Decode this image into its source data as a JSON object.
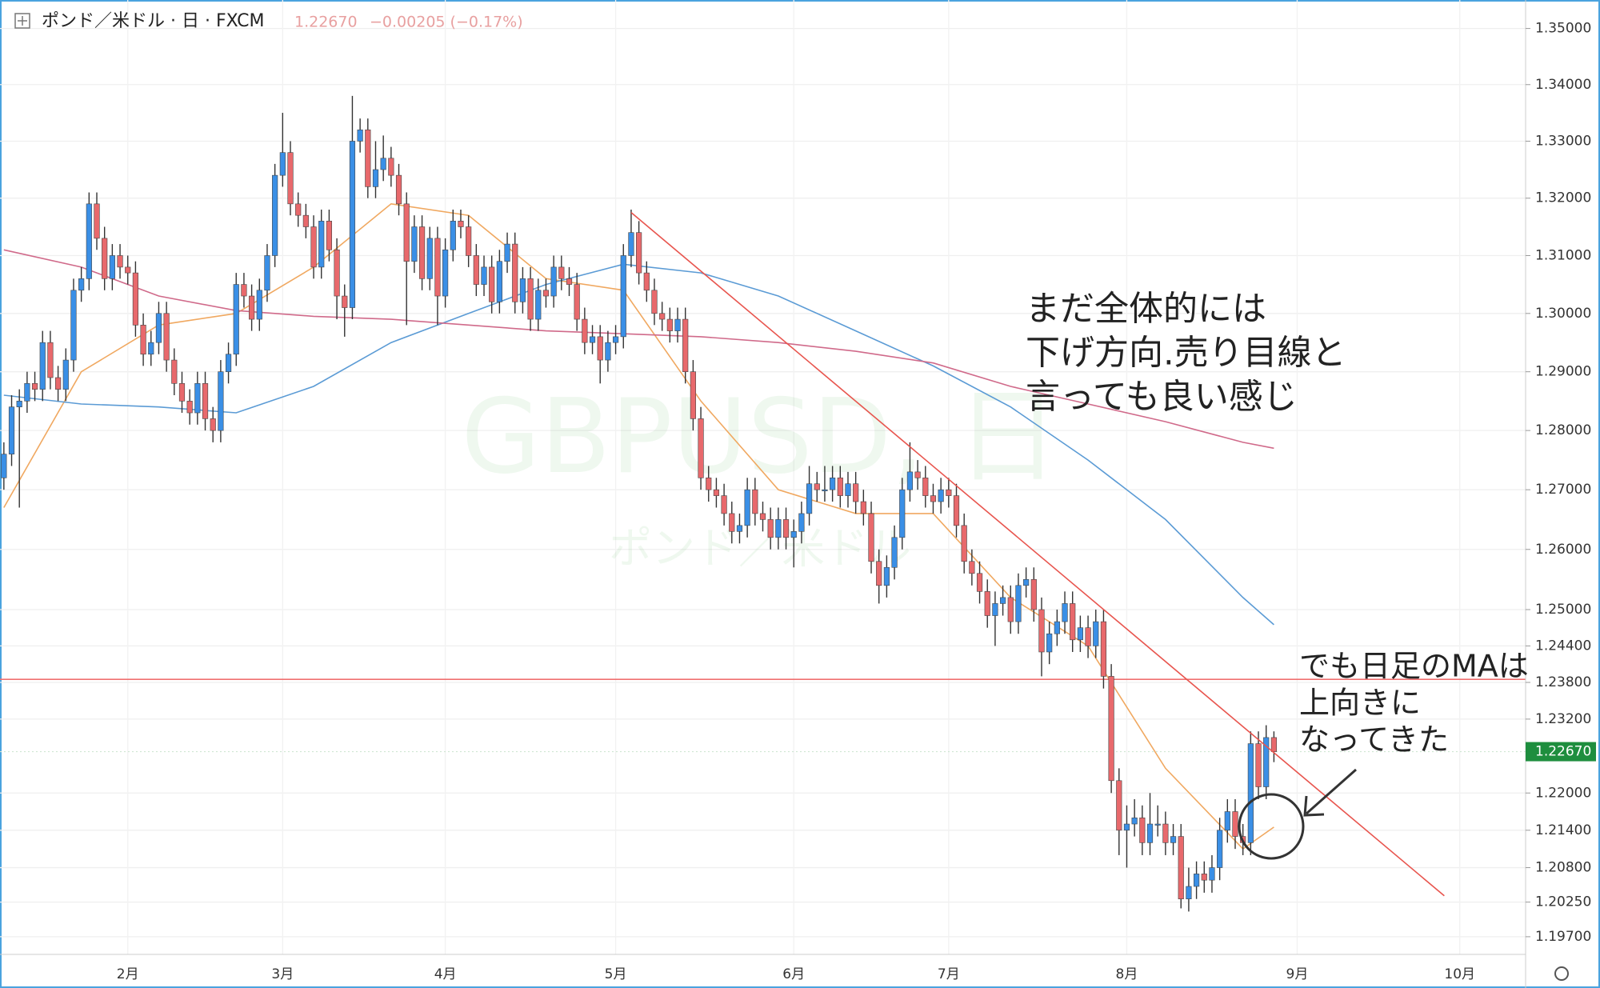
{
  "chart_data": {
    "type": "candlestick",
    "header": {
      "symbol": "ポンド／米ドル · 日 · FXCM",
      "last": "1.22670",
      "change": "−0.00205 (−0.17%)"
    },
    "watermark": {
      "title": "GBPUSD, 日",
      "subtitle": "ポンド／米ドル"
    },
    "log_scale": true,
    "grid": true,
    "up_color": "#3a8fe6",
    "down_color": "#e8696c",
    "ylim": [
      1.1942,
      1.3551
    ],
    "yticks": [
      {
        "value": 1.35,
        "label": "1.35000"
      },
      {
        "value": 1.34,
        "label": "1.34000"
      },
      {
        "value": 1.33,
        "label": "1.33000"
      },
      {
        "value": 1.32,
        "label": "1.32000"
      },
      {
        "value": 1.31,
        "label": "1.31000"
      },
      {
        "value": 1.3,
        "label": "1.30000"
      },
      {
        "value": 1.29,
        "label": "1.29000"
      },
      {
        "value": 1.28,
        "label": "1.28000"
      },
      {
        "value": 1.27,
        "label": "1.27000"
      },
      {
        "value": 1.26,
        "label": "1.26000"
      },
      {
        "value": 1.25,
        "label": "1.25000"
      },
      {
        "value": 1.244,
        "label": "1.24400"
      },
      {
        "value": 1.238,
        "label": "1.23800"
      },
      {
        "value": 1.232,
        "label": "1.23200"
      },
      {
        "value": 1.22,
        "label": "1.22000"
      },
      {
        "value": 1.214,
        "label": "1.21400"
      },
      {
        "value": 1.208,
        "label": "1.20800"
      },
      {
        "value": 1.2025,
        "label": "1.20250"
      },
      {
        "value": 1.197,
        "label": "1.19700"
      }
    ],
    "categories": [
      null,
      null,
      null,
      null,
      null,
      null,
      null,
      null,
      null,
      null,
      null,
      null,
      null,
      null,
      null,
      null,
      "2月",
      null,
      null,
      null,
      null,
      null,
      null,
      null,
      null,
      null,
      null,
      null,
      null,
      null,
      null,
      null,
      null,
      null,
      null,
      null,
      "3月",
      null,
      null,
      null,
      null,
      null,
      null,
      null,
      null,
      null,
      null,
      null,
      null,
      null,
      null,
      null,
      null,
      null,
      null,
      null,
      null,
      "4月",
      null,
      null,
      null,
      null,
      null,
      null,
      null,
      null,
      null,
      null,
      null,
      null,
      null,
      null,
      null,
      null,
      null,
      null,
      null,
      null,
      null,
      "5月",
      null,
      null,
      null,
      null,
      null,
      null,
      null,
      null,
      null,
      null,
      null,
      null,
      null,
      null,
      null,
      null,
      null,
      null,
      null,
      null,
      null,
      null,
      "6月",
      null,
      null,
      null,
      null,
      null,
      null,
      null,
      null,
      null,
      null,
      null,
      null,
      null,
      null,
      null,
      null,
      null,
      null,
      null,
      "7月",
      null,
      null,
      null,
      null,
      null,
      null,
      null,
      null,
      null,
      null,
      null,
      null,
      null,
      null,
      null,
      null,
      null,
      null,
      null,
      null,
      null,
      null,
      "8月",
      null,
      null,
      null,
      null,
      null,
      null,
      null,
      null,
      null,
      null,
      null,
      null,
      null,
      null,
      null,
      null,
      null,
      null,
      null,
      null,
      null,
      "9月",
      null,
      null,
      null,
      null,
      null,
      null,
      null,
      null,
      null,
      null,
      null,
      null,
      null,
      null,
      null,
      null,
      null,
      null,
      null,
      null,
      "10月",
      null,
      null,
      null,
      null,
      null,
      null,
      null,
      null
    ],
    "ohlc": [
      [
        1.272,
        1.278,
        1.27,
        1.276
      ],
      [
        1.276,
        1.286,
        1.274,
        1.284
      ],
      [
        1.284,
        1.287,
        1.267,
        1.285
      ],
      [
        1.285,
        1.29,
        1.283,
        1.288
      ],
      [
        1.288,
        1.29,
        1.285,
        1.287
      ],
      [
        1.287,
        1.297,
        1.285,
        1.295
      ],
      [
        1.295,
        1.297,
        1.287,
        1.289
      ],
      [
        1.289,
        1.291,
        1.285,
        1.287
      ],
      [
        1.287,
        1.294,
        1.285,
        1.292
      ],
      [
        1.292,
        1.306,
        1.29,
        1.304
      ],
      [
        1.304,
        1.308,
        1.302,
        1.306
      ],
      [
        1.306,
        1.321,
        1.304,
        1.319
      ],
      [
        1.319,
        1.321,
        1.311,
        1.313
      ],
      [
        1.313,
        1.315,
        1.304,
        1.306
      ],
      [
        1.306,
        1.312,
        1.304,
        1.31
      ],
      [
        1.31,
        1.312,
        1.306,
        1.308
      ],
      [
        1.308,
        1.31,
        1.305,
        1.307
      ],
      [
        1.307,
        1.309,
        1.296,
        1.298
      ],
      [
        1.298,
        1.3,
        1.291,
        1.293
      ],
      [
        1.293,
        1.297,
        1.291,
        1.295
      ],
      [
        1.295,
        1.302,
        1.293,
        1.3
      ],
      [
        1.3,
        1.302,
        1.29,
        1.292
      ],
      [
        1.292,
        1.294,
        1.286,
        1.288
      ],
      [
        1.288,
        1.29,
        1.283,
        1.285
      ],
      [
        1.285,
        1.287,
        1.281,
        1.283
      ],
      [
        1.283,
        1.29,
        1.281,
        1.288
      ],
      [
        1.288,
        1.29,
        1.28,
        1.282
      ],
      [
        1.282,
        1.284,
        1.278,
        1.28
      ],
      [
        1.28,
        1.292,
        1.278,
        1.29
      ],
      [
        1.29,
        1.295,
        1.288,
        1.293
      ],
      [
        1.293,
        1.307,
        1.291,
        1.305
      ],
      [
        1.305,
        1.307,
        1.301,
        1.303
      ],
      [
        1.303,
        1.305,
        1.297,
        1.299
      ],
      [
        1.299,
        1.306,
        1.297,
        1.304
      ],
      [
        1.304,
        1.312,
        1.302,
        1.31
      ],
      [
        1.31,
        1.326,
        1.308,
        1.324
      ],
      [
        1.324,
        1.335,
        1.322,
        1.328
      ],
      [
        1.328,
        1.33,
        1.317,
        1.319
      ],
      [
        1.319,
        1.321,
        1.315,
        1.317
      ],
      [
        1.317,
        1.319,
        1.313,
        1.315
      ],
      [
        1.315,
        1.317,
        1.306,
        1.308
      ],
      [
        1.308,
        1.318,
        1.306,
        1.316
      ],
      [
        1.316,
        1.318,
        1.309,
        1.311
      ],
      [
        1.311,
        1.313,
        1.299,
        1.303
      ],
      [
        1.303,
        1.305,
        1.296,
        1.301
      ],
      [
        1.301,
        1.338,
        1.299,
        1.33
      ],
      [
        1.33,
        1.334,
        1.328,
        1.332
      ],
      [
        1.332,
        1.334,
        1.32,
        1.322
      ],
      [
        1.322,
        1.33,
        1.32,
        1.325
      ],
      [
        1.325,
        1.331,
        1.323,
        1.327
      ],
      [
        1.327,
        1.329,
        1.322,
        1.324
      ],
      [
        1.324,
        1.326,
        1.317,
        1.319
      ],
      [
        1.319,
        1.321,
        1.298,
        1.309
      ],
      [
        1.309,
        1.317,
        1.307,
        1.315
      ],
      [
        1.315,
        1.317,
        1.304,
        1.306
      ],
      [
        1.306,
        1.315,
        1.304,
        1.313
      ],
      [
        1.313,
        1.315,
        1.298,
        1.303
      ],
      [
        1.303,
        1.313,
        1.301,
        1.311
      ],
      [
        1.311,
        1.318,
        1.309,
        1.316
      ],
      [
        1.316,
        1.318,
        1.313,
        1.315
      ],
      [
        1.315,
        1.317,
        1.308,
        1.31
      ],
      [
        1.31,
        1.312,
        1.303,
        1.305
      ],
      [
        1.305,
        1.31,
        1.303,
        1.308
      ],
      [
        1.308,
        1.31,
        1.3,
        1.302
      ],
      [
        1.302,
        1.311,
        1.3,
        1.309
      ],
      [
        1.309,
        1.314,
        1.307,
        1.312
      ],
      [
        1.312,
        1.314,
        1.3,
        1.302
      ],
      [
        1.302,
        1.308,
        1.3,
        1.306
      ],
      [
        1.306,
        1.308,
        1.297,
        1.299
      ],
      [
        1.299,
        1.306,
        1.297,
        1.304
      ],
      [
        1.304,
        1.306,
        1.301,
        1.303
      ],
      [
        1.303,
        1.31,
        1.301,
        1.308
      ],
      [
        1.308,
        1.31,
        1.304,
        1.306
      ],
      [
        1.306,
        1.308,
        1.303,
        1.305
      ],
      [
        1.305,
        1.307,
        1.297,
        1.299
      ],
      [
        1.299,
        1.301,
        1.293,
        1.295
      ],
      [
        1.295,
        1.298,
        1.293,
        1.296
      ],
      [
        1.296,
        1.298,
        1.288,
        1.292
      ],
      [
        1.292,
        1.297,
        1.29,
        1.295
      ],
      [
        1.295,
        1.298,
        1.293,
        1.296
      ],
      [
        1.296,
        1.312,
        1.294,
        1.31
      ],
      [
        1.31,
        1.318,
        1.308,
        1.314
      ],
      [
        1.314,
        1.316,
        1.305,
        1.307
      ],
      [
        1.307,
        1.309,
        1.302,
        1.304
      ],
      [
        1.304,
        1.306,
        1.298,
        1.3
      ],
      [
        1.3,
        1.302,
        1.297,
        1.299
      ],
      [
        1.299,
        1.301,
        1.295,
        1.297
      ],
      [
        1.297,
        1.301,
        1.295,
        1.299
      ],
      [
        1.299,
        1.301,
        1.288,
        1.29
      ],
      [
        1.29,
        1.292,
        1.28,
        1.282
      ],
      [
        1.282,
        1.284,
        1.27,
        1.272
      ],
      [
        1.272,
        1.274,
        1.268,
        1.27
      ],
      [
        1.27,
        1.272,
        1.267,
        1.269
      ],
      [
        1.269,
        1.271,
        1.264,
        1.266
      ],
      [
        1.266,
        1.268,
        1.261,
        1.263
      ],
      [
        1.263,
        1.266,
        1.261,
        1.264
      ],
      [
        1.264,
        1.272,
        1.262,
        1.27
      ],
      [
        1.27,
        1.272,
        1.264,
        1.266
      ],
      [
        1.266,
        1.268,
        1.263,
        1.265
      ],
      [
        1.265,
        1.267,
        1.26,
        1.262
      ],
      [
        1.262,
        1.267,
        1.26,
        1.265
      ],
      [
        1.265,
        1.267,
        1.26,
        1.262
      ],
      [
        1.262,
        1.265,
        1.257,
        1.263
      ],
      [
        1.263,
        1.268,
        1.261,
        1.266
      ],
      [
        1.266,
        1.274,
        1.264,
        1.271
      ],
      [
        1.271,
        1.273,
        1.268,
        1.27
      ],
      [
        1.27,
        1.274,
        1.268,
        1.27
      ],
      [
        1.27,
        1.274,
        1.268,
        1.272
      ],
      [
        1.272,
        1.274,
        1.267,
        1.269
      ],
      [
        1.269,
        1.273,
        1.267,
        1.271
      ],
      [
        1.271,
        1.273,
        1.266,
        1.268
      ],
      [
        1.268,
        1.27,
        1.264,
        1.266
      ],
      [
        1.266,
        1.268,
        1.256,
        1.258
      ],
      [
        1.258,
        1.26,
        1.251,
        1.254
      ],
      [
        1.254,
        1.259,
        1.252,
        1.257
      ],
      [
        1.257,
        1.264,
        1.255,
        1.262
      ],
      [
        1.262,
        1.272,
        1.26,
        1.27
      ],
      [
        1.27,
        1.278,
        1.268,
        1.273
      ],
      [
        1.273,
        1.275,
        1.27,
        1.272
      ],
      [
        1.272,
        1.274,
        1.267,
        1.269
      ],
      [
        1.269,
        1.271,
        1.266,
        1.268
      ],
      [
        1.268,
        1.272,
        1.266,
        1.27
      ],
      [
        1.27,
        1.272,
        1.267,
        1.269
      ],
      [
        1.269,
        1.271,
        1.262,
        1.264
      ],
      [
        1.264,
        1.266,
        1.256,
        1.258
      ],
      [
        1.258,
        1.26,
        1.254,
        1.256
      ],
      [
        1.256,
        1.258,
        1.251,
        1.253
      ],
      [
        1.253,
        1.255,
        1.247,
        1.249
      ],
      [
        1.249,
        1.253,
        1.244,
        1.251
      ],
      [
        1.251,
        1.254,
        1.249,
        1.252
      ],
      [
        1.252,
        1.254,
        1.246,
        1.248
      ],
      [
        1.248,
        1.256,
        1.246,
        1.254
      ],
      [
        1.254,
        1.257,
        1.252,
        1.255
      ],
      [
        1.255,
        1.257,
        1.248,
        1.25
      ],
      [
        1.25,
        1.252,
        1.239,
        1.243
      ],
      [
        1.243,
        1.248,
        1.241,
        1.246
      ],
      [
        1.246,
        1.25,
        1.244,
        1.248
      ],
      [
        1.248,
        1.253,
        1.246,
        1.251
      ],
      [
        1.251,
        1.253,
        1.243,
        1.245
      ],
      [
        1.245,
        1.249,
        1.243,
        1.247
      ],
      [
        1.247,
        1.249,
        1.242,
        1.244
      ],
      [
        1.244,
        1.25,
        1.242,
        1.248
      ],
      [
        1.248,
        1.25,
        1.237,
        1.239
      ],
      [
        1.239,
        1.241,
        1.22,
        1.222
      ],
      [
        1.222,
        1.224,
        1.21,
        1.214
      ],
      [
        1.214,
        1.218,
        1.208,
        1.215
      ],
      [
        1.215,
        1.219,
        1.213,
        1.216
      ],
      [
        1.216,
        1.218,
        1.21,
        1.212
      ],
      [
        1.212,
        1.22,
        1.21,
        1.215
      ],
      [
        1.215,
        1.218,
        1.213,
        1.215
      ],
      [
        1.215,
        1.217,
        1.21,
        1.212
      ],
      [
        1.212,
        1.215,
        1.21,
        1.213
      ],
      [
        1.213,
        1.215,
        1.2015,
        1.203
      ],
      [
        1.203,
        1.208,
        1.201,
        1.205
      ],
      [
        1.205,
        1.209,
        1.203,
        1.207
      ],
      [
        1.207,
        1.209,
        1.204,
        1.206
      ],
      [
        1.206,
        1.21,
        1.204,
        1.208
      ],
      [
        1.208,
        1.216,
        1.206,
        1.214
      ],
      [
        1.214,
        1.219,
        1.212,
        1.217
      ],
      [
        1.217,
        1.219,
        1.211,
        1.213
      ],
      [
        1.213,
        1.215,
        1.21,
        1.212
      ],
      [
        1.212,
        1.23,
        1.21,
        1.228
      ],
      [
        1.228,
        1.23,
        1.219,
        1.221
      ],
      [
        1.221,
        1.231,
        1.219,
        1.229
      ],
      [
        1.229,
        1.23,
        1.225,
        1.2267
      ],
      null,
      null,
      null,
      null,
      null,
      null,
      null,
      null,
      null,
      null,
      null,
      null,
      null,
      null,
      null,
      null,
      null,
      null,
      null,
      null,
      null,
      null,
      null,
      null,
      null,
      null,
      null,
      null,
      null,
      null,
      null,
      null
    ],
    "moving_averages": [
      {
        "color": "#f0a860",
        "x": [
          0,
          10,
          20,
          30,
          40,
          50,
          60,
          70,
          80,
          90,
          100,
          110,
          120,
          130,
          140,
          150,
          160,
          164
        ],
        "values": [
          1.267,
          1.29,
          1.298,
          1.3,
          1.308,
          1.319,
          1.317,
          1.306,
          1.304,
          1.285,
          1.27,
          1.266,
          1.266,
          1.252,
          1.244,
          1.224,
          1.211,
          1.2145
        ]
      },
      {
        "color": "#5b9bd5",
        "x": [
          0,
          10,
          20,
          30,
          40,
          50,
          60,
          70,
          80,
          90,
          100,
          110,
          120,
          130,
          140,
          150,
          160,
          164
        ],
        "values": [
          1.286,
          1.2845,
          1.284,
          1.283,
          1.2875,
          1.295,
          1.3,
          1.305,
          1.3085,
          1.307,
          1.303,
          1.297,
          1.291,
          1.284,
          1.275,
          1.265,
          1.252,
          1.2475
        ]
      },
      {
        "color": "#d06a8a",
        "x": [
          0,
          10,
          20,
          30,
          40,
          50,
          60,
          70,
          80,
          90,
          100,
          110,
          120,
          130,
          140,
          150,
          160,
          164
        ],
        "values": [
          1.311,
          1.308,
          1.303,
          1.3005,
          1.2995,
          1.299,
          1.298,
          1.297,
          1.2965,
          1.296,
          1.295,
          1.2935,
          1.2915,
          1.2875,
          1.2845,
          1.2815,
          1.278,
          1.277
        ]
      }
    ],
    "trendline": {
      "color": "#e8554e",
      "x": [
        81,
        186
      ],
      "values": [
        1.3175,
        1.2035
      ]
    },
    "hline": {
      "value": 1.2385,
      "color": "#f07070"
    },
    "last_price": {
      "value": 1.2267,
      "label": "1.22670",
      "color": "#1e8e3e"
    },
    "annotations": [
      {
        "lines": [
          "まだ全体的には",
          "下げ方向.売り目線と",
          "言っても良い感じ"
        ]
      },
      {
        "lines": [
          "でも日足のMAは",
          "上向きに",
          "なってきた"
        ]
      }
    ]
  }
}
